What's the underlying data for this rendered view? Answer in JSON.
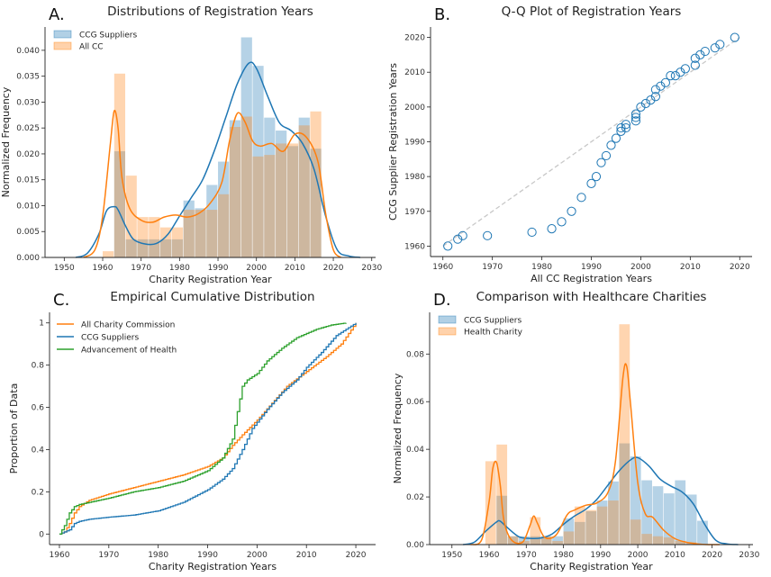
{
  "colors": {
    "blue": "#1f77b4",
    "orange": "#ff7f0e",
    "green": "#2ca02c",
    "overlap": "#caa682"
  },
  "chart_data": [
    {
      "id": "A",
      "panel_label": "A.",
      "type": "histogram",
      "title": "Distributions of Registration Years",
      "xlabel": "Charity Registration Year",
      "ylabel": "Normalized Frequency",
      "xlim": [
        1945,
        2031
      ],
      "ylim": [
        0,
        0.0445
      ],
      "xticks": [
        1950,
        1960,
        1970,
        1980,
        1990,
        2000,
        2010,
        2020,
        2030
      ],
      "yticks": [
        0.0,
        0.005,
        0.01,
        0.015,
        0.02,
        0.025,
        0.03,
        0.035,
        0.04
      ],
      "ytick_labels": [
        "0.000",
        "0.005",
        "0.010",
        "0.015",
        "0.020",
        "0.025",
        "0.030",
        "0.035",
        "0.040"
      ],
      "legend_position": "top-left",
      "bin_edges": [
        1960,
        1963,
        1966,
        1969,
        1972,
        1975,
        1978,
        1981,
        1984,
        1987,
        1990,
        1993,
        1996,
        1999,
        2002,
        2005,
        2008,
        2011,
        2014,
        2017
      ],
      "series": [
        {
          "name": "CCG Suppliers",
          "color": "#1f77b4",
          "values": [
            0.0,
            0.0205,
            0.0035,
            0.0035,
            0.0035,
            0.0035,
            0.0035,
            0.011,
            0.0095,
            0.014,
            0.0185,
            0.0265,
            0.0425,
            0.037,
            0.027,
            0.0245,
            0.0215,
            0.027,
            0.021
          ],
          "kde_x": [
            1953,
            1956,
            1959,
            1961,
            1963,
            1964,
            1966,
            1968,
            1971,
            1974,
            1977,
            1980,
            1983,
            1986,
            1989,
            1992,
            1995,
            1998,
            2000,
            2003,
            2006,
            2009,
            2012,
            2015,
            2018,
            2021,
            2024,
            2027
          ],
          "kde_y": [
            0.0,
            0.0008,
            0.0045,
            0.009,
            0.0098,
            0.0092,
            0.006,
            0.0035,
            0.0026,
            0.0027,
            0.0045,
            0.008,
            0.0115,
            0.015,
            0.0205,
            0.027,
            0.0335,
            0.0375,
            0.0365,
            0.031,
            0.026,
            0.0245,
            0.022,
            0.017,
            0.008,
            0.0015,
            0.0003,
            0.0
          ]
        },
        {
          "name": "All CC",
          "color": "#ff7f0e",
          "values": [
            0.0012,
            0.0355,
            0.0158,
            0.0078,
            0.0078,
            0.0058,
            0.0058,
            0.0092,
            0.0092,
            0.0092,
            0.0122,
            0.0252,
            0.0272,
            0.0195,
            0.0198,
            0.022,
            0.022,
            0.0255,
            0.0282
          ],
          "kde_x": [
            1955,
            1958,
            1960,
            1962,
            1963,
            1964,
            1965,
            1967,
            1970,
            1973,
            1976,
            1979,
            1982,
            1985,
            1988,
            1991,
            1993,
            1995,
            1997,
            1999,
            2001,
            2004,
            2007,
            2010,
            2013,
            2016,
            2018,
            2020,
            2022
          ],
          "kde_y": [
            0.0,
            0.0015,
            0.008,
            0.022,
            0.0283,
            0.025,
            0.0155,
            0.0095,
            0.0072,
            0.0068,
            0.0078,
            0.0082,
            0.0078,
            0.0085,
            0.0105,
            0.0145,
            0.0225,
            0.0278,
            0.0262,
            0.0225,
            0.0215,
            0.022,
            0.0205,
            0.0238,
            0.0232,
            0.0185,
            0.0085,
            0.0015,
            0.0
          ]
        }
      ]
    },
    {
      "id": "B",
      "panel_label": "B.",
      "type": "scatter",
      "title": "Q-Q Plot of Registration Years",
      "xlabel": "All CC Registration Years",
      "ylabel": "CCG Supplier Registration Years",
      "xlim": [
        1957.5,
        2022.5
      ],
      "ylim": [
        1957,
        2023
      ],
      "xticks": [
        1960,
        1970,
        1980,
        1990,
        2000,
        2010,
        2020
      ],
      "yticks": [
        1960,
        1970,
        1980,
        1990,
        2000,
        2010,
        2020
      ],
      "reference_line": [
        [
          1960,
          1960
        ],
        [
          2020,
          2020
        ]
      ],
      "points": [
        [
          1961,
          1960
        ],
        [
          1963,
          1962
        ],
        [
          1964,
          1963
        ],
        [
          1969,
          1963
        ],
        [
          1978,
          1964
        ],
        [
          1982,
          1965
        ],
        [
          1984,
          1967
        ],
        [
          1986,
          1970
        ],
        [
          1988,
          1974
        ],
        [
          1990,
          1978
        ],
        [
          1991,
          1980
        ],
        [
          1992,
          1984
        ],
        [
          1993,
          1986
        ],
        [
          1994,
          1989
        ],
        [
          1995,
          1991
        ],
        [
          1996,
          1993
        ],
        [
          1996,
          1994
        ],
        [
          1997,
          1994
        ],
        [
          1997,
          1995
        ],
        [
          1999,
          1996
        ],
        [
          1999,
          1997
        ],
        [
          1999,
          1998
        ],
        [
          2000,
          2000
        ],
        [
          2001,
          2001
        ],
        [
          2002,
          2002
        ],
        [
          2003,
          2003
        ],
        [
          2003,
          2005
        ],
        [
          2004,
          2006
        ],
        [
          2005,
          2007
        ],
        [
          2006,
          2009
        ],
        [
          2007,
          2009
        ],
        [
          2008,
          2010
        ],
        [
          2009,
          2011
        ],
        [
          2011,
          2012
        ],
        [
          2011,
          2014
        ],
        [
          2012,
          2015
        ],
        [
          2013,
          2016
        ],
        [
          2015,
          2017
        ],
        [
          2016,
          2018
        ],
        [
          2019,
          2020
        ]
      ]
    },
    {
      "id": "C",
      "panel_label": "C.",
      "type": "line",
      "title": "Empirical Cumulative Distribution",
      "xlabel": "Charity Registration Years",
      "ylabel": "Proportion of Data",
      "xlim": [
        1958,
        2024
      ],
      "ylim": [
        -0.05,
        1.05
      ],
      "xticks": [
        1960,
        1970,
        1980,
        1990,
        2000,
        2010,
        2020
      ],
      "yticks": [
        0.0,
        0.2,
        0.4,
        0.6,
        0.8,
        1.0
      ],
      "legend_position": "top-left",
      "series": [
        {
          "name": "All Charity Commission",
          "color": "#ff7f0e",
          "x": [
            1960,
            1961,
            1962,
            1963,
            1964,
            1966,
            1970,
            1975,
            1980,
            1985,
            1990,
            1993,
            1995,
            1997,
            2000,
            2003,
            2006,
            2010,
            2014,
            2017,
            2020
          ],
          "y": [
            0.0,
            0.01,
            0.05,
            0.1,
            0.13,
            0.16,
            0.19,
            0.22,
            0.25,
            0.28,
            0.32,
            0.36,
            0.42,
            0.47,
            0.54,
            0.62,
            0.7,
            0.77,
            0.84,
            0.9,
            1.0
          ]
        },
        {
          "name": "CCG Suppliers",
          "color": "#1f77b4",
          "x": [
            1960,
            1962,
            1963,
            1964,
            1966,
            1970,
            1975,
            1980,
            1985,
            1990,
            1993,
            1995,
            1997,
            1999,
            2002,
            2005,
            2008,
            2010,
            2013,
            2016,
            2020
          ],
          "y": [
            0.0,
            0.02,
            0.05,
            0.06,
            0.07,
            0.08,
            0.09,
            0.11,
            0.15,
            0.21,
            0.26,
            0.31,
            0.4,
            0.5,
            0.59,
            0.67,
            0.73,
            0.79,
            0.86,
            0.94,
            1.0
          ]
        },
        {
          "name": "Advancement of Health",
          "color": "#2ca02c",
          "x": [
            1960,
            1961,
            1962,
            1963,
            1964,
            1966,
            1970,
            1975,
            1980,
            1985,
            1990,
            1993,
            1995,
            1996,
            1997,
            1998,
            2000,
            2002,
            2005,
            2008,
            2012,
            2015,
            2018
          ],
          "y": [
            0.0,
            0.04,
            0.1,
            0.13,
            0.14,
            0.15,
            0.17,
            0.2,
            0.22,
            0.25,
            0.3,
            0.36,
            0.45,
            0.58,
            0.7,
            0.73,
            0.76,
            0.82,
            0.88,
            0.93,
            0.97,
            0.99,
            1.0
          ]
        }
      ]
    },
    {
      "id": "D",
      "panel_label": "D.",
      "type": "histogram",
      "title": "Comparison with Healthcare Charities",
      "xlabel": "Charity Registration Year",
      "ylabel": "Normalized Frequency",
      "xlim": [
        1944,
        2031
      ],
      "ylim": [
        0,
        0.0975
      ],
      "xticks": [
        1950,
        1960,
        1970,
        1980,
        1990,
        2000,
        2010,
        2020,
        2030
      ],
      "yticks": [
        0.0,
        0.02,
        0.04,
        0.06,
        0.08
      ],
      "ytick_labels": [
        "0.00",
        "0.02",
        "0.04",
        "0.06",
        "0.08"
      ],
      "legend_position": "top-left",
      "bin_edges": [
        1959,
        1962,
        1965,
        1968,
        1971,
        1974,
        1977,
        1980,
        1983,
        1986,
        1989,
        1992,
        1995,
        1998,
        2001,
        2004,
        2007,
        2010,
        2013,
        2016,
        2019
      ],
      "series": [
        {
          "name": "CCG Suppliers",
          "color": "#1f77b4",
          "values": [
            0.0,
            0.0205,
            0.0035,
            0.0035,
            0.0035,
            0.0035,
            0.0035,
            0.011,
            0.0095,
            0.014,
            0.0185,
            0.0265,
            0.0425,
            0.037,
            0.027,
            0.0245,
            0.0215,
            0.027,
            0.021,
            0.01
          ],
          "kde_x": [
            1953,
            1956,
            1959,
            1962,
            1963,
            1965,
            1968,
            1971,
            1974,
            1977,
            1980,
            1983,
            1986,
            1989,
            1992,
            1995,
            1998,
            2000,
            2003,
            2006,
            2009,
            2012,
            2015,
            2018,
            2021,
            2024,
            2027
          ],
          "kde_y": [
            0.0,
            0.001,
            0.0055,
            0.0095,
            0.0098,
            0.007,
            0.0033,
            0.0026,
            0.0028,
            0.0045,
            0.0085,
            0.012,
            0.0148,
            0.019,
            0.025,
            0.031,
            0.0355,
            0.0365,
            0.033,
            0.0275,
            0.0245,
            0.022,
            0.017,
            0.0085,
            0.0018,
            0.0003,
            0.0
          ]
        },
        {
          "name": "Health Charity",
          "color": "#ff7f0e",
          "values": [
            0.035,
            0.042,
            0.0035,
            0.0015,
            0.0115,
            0.0035,
            0.0015,
            0.0055,
            0.016,
            0.0145,
            0.016,
            0.0185,
            0.0925,
            0.0105,
            0.0045,
            0.0035,
            0.003,
            0.0015,
            0.001,
            0.0
          ],
          "kde_x": [
            1955,
            1958,
            1960,
            1961,
            1962,
            1963,
            1964,
            1966,
            1969,
            1971,
            1972,
            1973,
            1975,
            1978,
            1981,
            1983,
            1986,
            1989,
            1992,
            1994,
            1996,
            1997,
            1998,
            2000,
            2002,
            2004,
            2007,
            2010,
            2013,
            2016,
            2019,
            2022
          ],
          "kde_y": [
            0.0,
            0.002,
            0.018,
            0.032,
            0.0345,
            0.025,
            0.01,
            0.002,
            0.001,
            0.008,
            0.012,
            0.009,
            0.003,
            0.004,
            0.0125,
            0.0145,
            0.0165,
            0.0175,
            0.022,
            0.035,
            0.07,
            0.075,
            0.06,
            0.026,
            0.013,
            0.0115,
            0.006,
            0.0025,
            0.001,
            0.0003,
            0.0,
            0.0
          ]
        }
      ]
    }
  ]
}
